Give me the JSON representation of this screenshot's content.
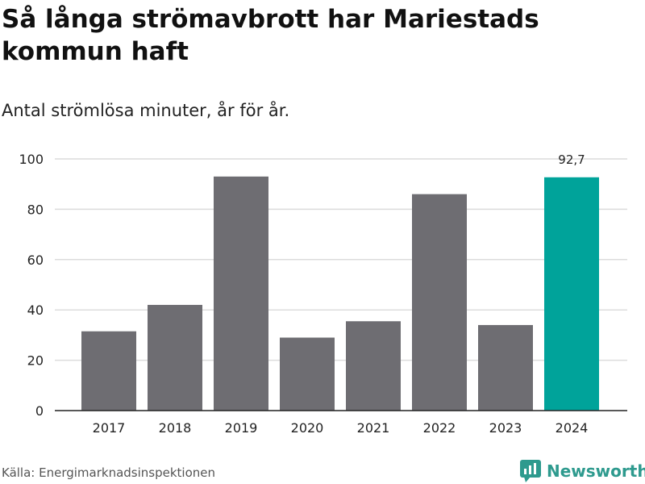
{
  "header": {
    "title": "Så långa strömavbrott har Mariestads kommun haft",
    "subtitle": "Antal strömlösa minuter, år för år."
  },
  "footer": {
    "source": "Källa: Energimarknadsinspektionen",
    "brand": "Newsworthy",
    "brand_color": "#2e9a8e"
  },
  "chart_data": {
    "type": "bar",
    "title": "Så långa strömavbrott har Mariestads kommun haft",
    "subtitle": "Antal strömlösa minuter, år för år.",
    "xlabel": "",
    "ylabel": "",
    "categories": [
      "2017",
      "2018",
      "2019",
      "2020",
      "2021",
      "2022",
      "2023",
      "2024"
    ],
    "values": [
      31.5,
      42,
      93,
      29,
      35.5,
      86,
      34,
      92.7
    ],
    "ylim": [
      0,
      100
    ],
    "yticks": [
      0,
      20,
      40,
      60,
      80,
      100
    ],
    "ytick_labels": [
      "0",
      "20",
      "40",
      "60",
      "80",
      "100"
    ],
    "grid": true,
    "bar_color": "#6e6d72",
    "highlight_color": "#00a39a",
    "highlight_index": 7,
    "data_labels": [
      {
        "index": 7,
        "text": "92,7"
      }
    ]
  }
}
